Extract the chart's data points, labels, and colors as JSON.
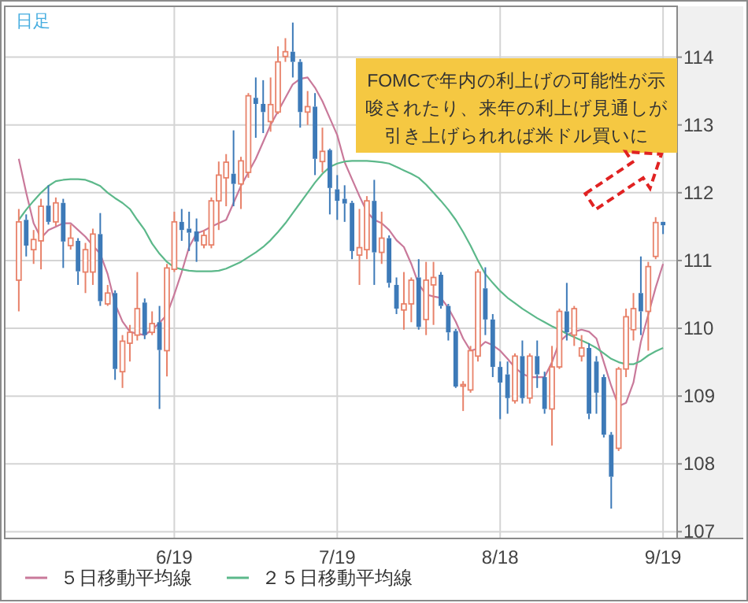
{
  "chart_data": {
    "type": "candlestick",
    "categories": [
      null,
      null,
      null,
      null,
      null,
      null,
      null,
      null,
      null,
      null,
      null,
      null,
      null,
      null,
      null,
      null,
      null,
      null,
      null,
      null,
      null,
      "6/19",
      null,
      null,
      null,
      null,
      null,
      null,
      null,
      null,
      null,
      null,
      null,
      null,
      null,
      null,
      null,
      null,
      null,
      null,
      null,
      null,
      null,
      "7/19",
      null,
      null,
      null,
      null,
      null,
      null,
      null,
      null,
      null,
      null,
      null,
      null,
      null,
      null,
      null,
      null,
      null,
      null,
      null,
      null,
      null,
      "8/18",
      null,
      null,
      null,
      null,
      null,
      null,
      null,
      null,
      null,
      null,
      null,
      null,
      null,
      null,
      null,
      null,
      null,
      null,
      null,
      null,
      null,
      "9/19"
    ],
    "ohlc": [
      [
        110.71,
        111.76,
        110.25,
        111.57
      ],
      [
        111.6,
        111.68,
        111.06,
        111.22
      ],
      [
        111.16,
        111.45,
        110.95,
        111.31
      ],
      [
        111.29,
        111.91,
        110.87,
        111.8
      ],
      [
        111.81,
        112.11,
        111.53,
        111.57
      ],
      [
        111.57,
        111.93,
        111.51,
        111.85
      ],
      [
        111.85,
        111.91,
        110.89,
        111.28
      ],
      [
        111.22,
        111.53,
        111.16,
        111.33
      ],
      [
        111.29,
        111.33,
        110.64,
        110.84
      ],
      [
        110.83,
        111.26,
        110.52,
        111.16
      ],
      [
        110.83,
        111.47,
        110.64,
        111.39
      ],
      [
        111.39,
        111.7,
        110.33,
        110.4
      ],
      [
        110.36,
        110.64,
        110.33,
        110.52
      ],
      [
        110.52,
        110.56,
        109.24,
        109.4
      ],
      [
        109.36,
        109.9,
        109.12,
        109.81
      ],
      [
        109.78,
        110.05,
        109.51,
        109.94
      ],
      [
        109.9,
        110.83,
        109.82,
        110.29
      ],
      [
        110.38,
        110.44,
        109.84,
        109.9
      ],
      [
        109.94,
        110.25,
        109.9,
        110.07
      ],
      [
        110.09,
        110.33,
        108.81,
        109.68
      ],
      [
        109.67,
        110.95,
        109.29,
        110.89
      ],
      [
        110.87,
        111.72,
        110.83,
        111.57
      ],
      [
        111.57,
        111.76,
        111.29,
        111.45
      ],
      [
        111.47,
        111.72,
        111.14,
        111.41
      ],
      [
        111.43,
        111.62,
        110.98,
        111.28
      ],
      [
        111.23,
        111.45,
        111.18,
        111.37
      ],
      [
        111.23,
        111.93,
        111.18,
        111.88
      ],
      [
        111.88,
        112.46,
        111.45,
        112.26
      ],
      [
        112.22,
        112.57,
        111.8,
        112.45
      ],
      [
        112.28,
        112.92,
        111.8,
        112.13
      ],
      [
        112.13,
        112.53,
        111.76,
        112.47
      ],
      [
        112.3,
        113.47,
        112.22,
        113.43
      ],
      [
        113.4,
        113.7,
        112.81,
        113.31
      ],
      [
        113.31,
        113.66,
        112.88,
        113.19
      ],
      [
        113.05,
        113.7,
        112.9,
        113.3
      ],
      [
        113.19,
        114.16,
        113.16,
        113.93
      ],
      [
        114.01,
        114.28,
        113.93,
        114.08
      ],
      [
        114.08,
        114.51,
        113.7,
        113.93
      ],
      [
        113.93,
        113.97,
        112.96,
        113.19
      ],
      [
        113.19,
        113.5,
        113.0,
        113.27
      ],
      [
        113.27,
        113.47,
        112.26,
        112.5
      ],
      [
        112.46,
        112.96,
        112.3,
        112.61
      ],
      [
        112.63,
        112.65,
        111.68,
        112.07
      ],
      [
        112.05,
        112.26,
        111.6,
        111.88
      ],
      [
        111.91,
        112.11,
        111.57,
        111.84
      ],
      [
        111.85,
        111.88,
        111.02,
        111.14
      ],
      [
        111.08,
        111.76,
        110.64,
        111.19
      ],
      [
        111.16,
        111.95,
        111.02,
        111.88
      ],
      [
        111.88,
        112.19,
        110.64,
        111.12
      ],
      [
        111.12,
        111.72,
        110.95,
        111.33
      ],
      [
        111.33,
        111.37,
        110.6,
        110.67
      ],
      [
        110.64,
        110.75,
        110.21,
        110.29
      ],
      [
        110.27,
        110.83,
        109.98,
        110.36
      ],
      [
        110.36,
        110.75,
        110.09,
        110.71
      ],
      [
        110.75,
        111.02,
        109.98,
        110.02
      ],
      [
        110.13,
        110.98,
        109.9,
        110.71
      ],
      [
        110.64,
        110.98,
        110.05,
        110.75
      ],
      [
        110.79,
        110.83,
        110.29,
        110.33
      ],
      [
        110.33,
        110.36,
        109.82,
        109.94
      ],
      [
        109.96,
        109.99,
        109.12,
        109.14
      ],
      [
        109.15,
        109.22,
        108.78,
        109.17
      ],
      [
        109.09,
        109.74,
        109.05,
        109.67
      ],
      [
        109.59,
        110.87,
        109.51,
        110.83
      ],
      [
        110.59,
        110.9,
        109.9,
        110.13
      ],
      [
        110.13,
        110.21,
        109.28,
        109.43
      ],
      [
        109.43,
        109.51,
        108.66,
        109.2
      ],
      [
        109.32,
        109.51,
        108.74,
        108.97
      ],
      [
        108.93,
        109.63,
        108.89,
        109.59
      ],
      [
        109.59,
        109.82,
        108.89,
        108.97
      ],
      [
        108.97,
        109.63,
        108.89,
        109.59
      ],
      [
        109.59,
        109.82,
        109.12,
        109.32
      ],
      [
        109.28,
        109.36,
        108.74,
        108.81
      ],
      [
        108.81,
        109.74,
        108.27,
        109.43
      ],
      [
        109.43,
        110.29,
        109.4,
        110.25
      ],
      [
        110.25,
        110.67,
        109.82,
        109.94
      ],
      [
        109.9,
        110.33,
        109.74,
        110.29
      ],
      [
        109.59,
        109.9,
        109.51,
        109.71
      ],
      [
        109.71,
        109.78,
        108.66,
        108.74
      ],
      [
        109.51,
        109.59,
        108.74,
        109.05
      ],
      [
        109.28,
        109.32,
        108.39,
        108.43
      ],
      [
        108.43,
        108.47,
        107.34,
        107.81
      ],
      [
        108.23,
        109.43,
        108.19,
        109.4
      ],
      [
        109.4,
        110.29,
        109.28,
        110.17
      ],
      [
        109.98,
        110.52,
        109.82,
        110.29
      ],
      [
        110.52,
        111.06,
        109.9,
        110.25
      ],
      [
        110.25,
        110.98,
        109.67,
        110.91
      ],
      [
        111.06,
        111.64,
        111.02,
        111.56
      ],
      [
        111.57,
        111.57,
        111.39,
        111.52
      ]
    ],
    "colors": [
      "#e8826a",
      "#3d7ab8",
      "#e8826a",
      "#e8826a",
      "#3d7ab8",
      "#e8826a",
      "#3d7ab8",
      "#e8826a",
      "#3d7ab8",
      "#e8826a",
      "#e8826a",
      "#3d7ab8",
      "#e8826a",
      "#3d7ab8",
      "#e8826a",
      "#e8826a",
      "#e8826a",
      "#3d7ab8",
      "#e8826a",
      "#3d7ab8",
      "#e8826a",
      "#e8826a",
      "#3d7ab8",
      "#3d7ab8",
      "#3d7ab8",
      "#e8826a",
      "#e8826a",
      "#e8826a",
      "#e8826a",
      "#3d7ab8",
      "#e8826a",
      "#e8826a",
      "#3d7ab8",
      "#3d7ab8",
      "#e8826a",
      "#e8826a",
      "#e8826a",
      "#3d7ab8",
      "#3d7ab8",
      "#e8826a",
      "#3d7ab8",
      "#e8826a",
      "#3d7ab8",
      "#3d7ab8",
      "#3d7ab8",
      "#3d7ab8",
      "#e8826a",
      "#e8826a",
      "#3d7ab8",
      "#e8826a",
      "#3d7ab8",
      "#3d7ab8",
      "#e8826a",
      "#e8826a",
      "#3d7ab8",
      "#e8826a",
      "#e8826a",
      "#3d7ab8",
      "#3d7ab8",
      "#3d7ab8",
      "#e8826a",
      "#e8826a",
      "#e8826a",
      "#3d7ab8",
      "#3d7ab8",
      "#3d7ab8",
      "#3d7ab8",
      "#e8826a",
      "#3d7ab8",
      "#e8826a",
      "#3d7ab8",
      "#3d7ab8",
      "#e8826a",
      "#e8826a",
      "#3d7ab8",
      "#e8826a",
      "#e8826a",
      "#3d7ab8",
      "#3d7ab8",
      "#3d7ab8",
      "#3d7ab8",
      "#e8826a",
      "#e8826a",
      "#e8826a",
      "#3d7ab8",
      "#e8826a",
      "#e8826a",
      "#3d7ab8"
    ],
    "series": [
      {
        "name": "５日移動平均線",
        "type": "line",
        "color": "#c9799a",
        "values": [
          112.5,
          112.0,
          111.55,
          111.33,
          111.45,
          111.5,
          111.55,
          111.55,
          111.45,
          111.35,
          111.22,
          111.1,
          110.8,
          110.36,
          110.1,
          109.95,
          109.92,
          109.9,
          109.98,
          110.08,
          110.2,
          110.5,
          110.83,
          111.2,
          111.4,
          111.44,
          111.5,
          111.55,
          111.6,
          111.85,
          112.1,
          112.3,
          112.5,
          112.75,
          113.0,
          113.2,
          113.4,
          113.6,
          113.68,
          113.7,
          113.55,
          113.35,
          113.1,
          112.85,
          112.45,
          112.2,
          111.95,
          111.72,
          111.6,
          111.55,
          111.45,
          111.3,
          111.2,
          110.95,
          110.65,
          110.5,
          110.47,
          110.45,
          110.3,
          110.1,
          109.85,
          109.67,
          109.7,
          109.8,
          109.75,
          109.67,
          109.55,
          109.42,
          109.33,
          109.28,
          109.28,
          109.28,
          109.5,
          109.8,
          109.9,
          109.95,
          109.98,
          109.95,
          109.85,
          109.5,
          109.15,
          108.85,
          108.9,
          109.2,
          109.8,
          110.2,
          110.6,
          110.95
        ]
      },
      {
        "name": "２５日移動平均線",
        "type": "line",
        "color": "#5cb88a",
        "values": [
          111.6,
          111.75,
          111.88,
          112.0,
          112.1,
          112.17,
          112.19,
          112.2,
          112.2,
          112.19,
          112.15,
          112.1,
          112.0,
          111.92,
          111.85,
          111.76,
          111.6,
          111.45,
          111.25,
          111.1,
          110.98,
          110.9,
          110.87,
          110.85,
          110.84,
          110.84,
          110.84,
          110.85,
          110.88,
          110.93,
          110.98,
          111.05,
          111.12,
          111.2,
          111.3,
          111.42,
          111.55,
          111.7,
          111.85,
          112.0,
          112.15,
          112.28,
          112.38,
          112.43,
          112.46,
          112.47,
          112.47,
          112.47,
          112.46,
          112.45,
          112.43,
          112.38,
          112.33,
          112.28,
          112.22,
          112.12,
          112.0,
          111.88,
          111.75,
          111.6,
          111.42,
          111.22,
          111.0,
          110.8,
          110.67,
          110.55,
          110.45,
          110.37,
          110.29,
          110.22,
          110.15,
          110.09,
          110.03,
          109.98,
          109.92,
          109.87,
          109.82,
          109.77,
          109.71,
          109.63,
          109.55,
          109.5,
          109.47,
          109.47,
          109.52,
          109.6,
          109.66,
          109.71
        ]
      }
    ],
    "ylim": [
      106.9,
      114.75
    ],
    "yticks": [
      107,
      108,
      109,
      110,
      111,
      112,
      113,
      114
    ],
    "grid": true,
    "legend": "bottom left",
    "annotations": [
      "日足",
      "FOMCで年内の利上げの可能性が示唆されたり、来年の利上げ見通しが引き上げられれば米ドル買いに"
    ]
  }
}
